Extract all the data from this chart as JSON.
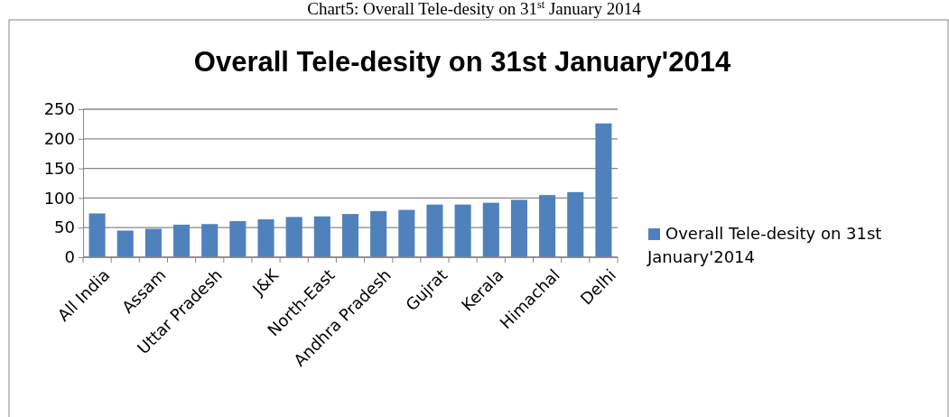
{
  "chart_data": {
    "type": "bar",
    "title": "Overall Tele-desity on 31st January'2014",
    "annotations": [
      "Chart5: Overall Tele-desity on 31$^{st}$ January 2014"
    ],
    "categories": [
      "All India",
      null,
      "Assam",
      null,
      "Uttar Pradesh",
      null,
      "J&K",
      null,
      "North-East",
      null,
      "Andhra Pradesh",
      null,
      "Gujrat",
      null,
      "Kerala",
      null,
      "Himachal",
      null,
      "Delhi"
    ],
    "series": [
      {
        "name": "Overall Tele-desity on 31st January'2014",
        "color": "#4f81bd",
        "values": [
          74,
          45,
          48,
          55,
          56,
          61,
          64,
          68,
          69,
          73,
          78,
          80,
          89,
          89,
          92,
          97,
          105,
          110,
          226
        ]
      }
    ],
    "ylim": [
      0,
      250
    ],
    "yticks": [
      0,
      50,
      100,
      150,
      200,
      250
    ],
    "grid": "y",
    "legend": "right"
  }
}
